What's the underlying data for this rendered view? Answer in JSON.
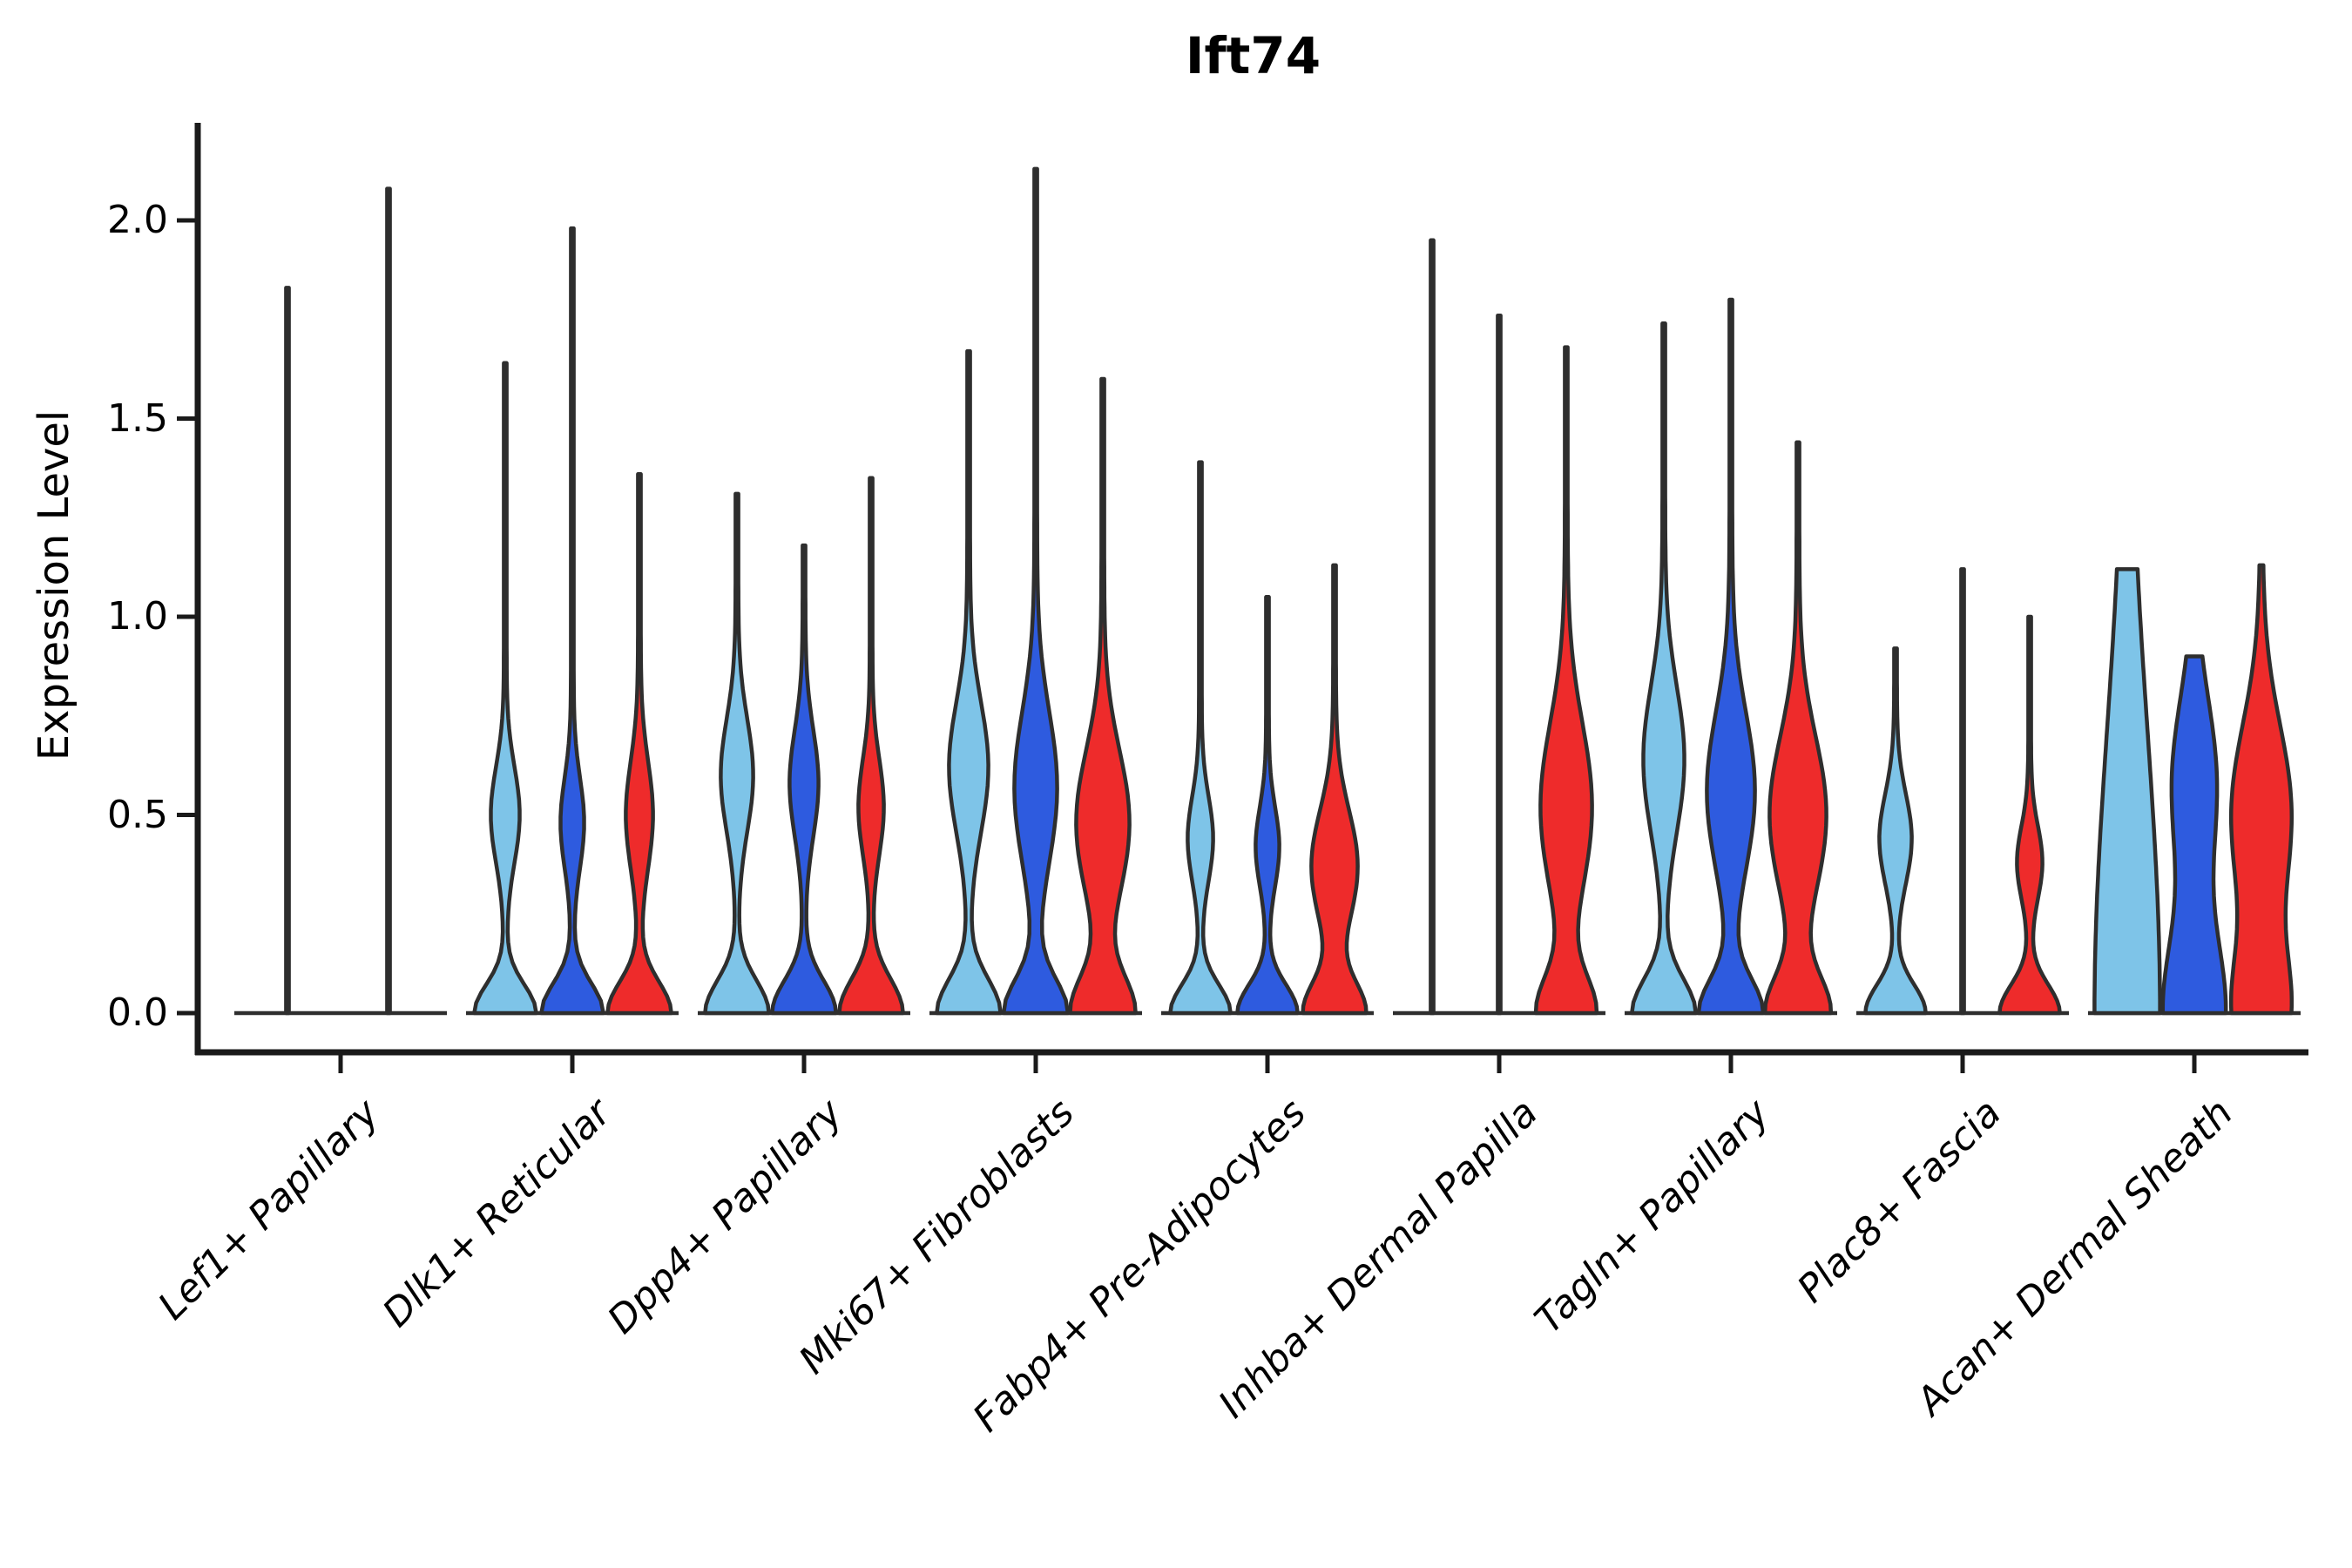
{
  "title": "Ift74",
  "ylabel": "Expression Level",
  "colors": {
    "series_lightblue": "#7EC4E8",
    "series_blue": "#2E5BDF",
    "series_red": "#EE2B2B",
    "outline": "#2E2E2E",
    "axis": "#1a1a1a",
    "background": "#ffffff"
  },
  "chart_data": {
    "type": "violin",
    "title": "Ift74",
    "xlabel": "",
    "ylabel": "Expression Level",
    "ylim": [
      0,
      2.25
    ],
    "yticks": [
      "0.0",
      "0.5",
      "1.0",
      "1.5",
      "2.0"
    ],
    "ytick_values": [
      0.0,
      0.5,
      1.0,
      1.5,
      2.0
    ],
    "grid": false,
    "legend": "none",
    "series": [
      {
        "name": "series-1-lightblue",
        "color": "#7EC4E8"
      },
      {
        "name": "series-2-blue",
        "color": "#2E5BDF"
      },
      {
        "name": "series-3-red",
        "color": "#EE2B2B"
      }
    ],
    "categories": [
      "Lef1+ Papillary",
      "Dlk1+ Reticular",
      "Dpp4+ Papillary",
      "Mki67+ Fibroblasts",
      "Fabp4+ Pre-Adipocytes",
      "Inhba+ Dermal Papilla",
      "Tagln+ Papillary",
      "Plac8+ Fascia",
      "Acan+ Dermal Sheath"
    ],
    "groups": [
      {
        "category": "Lef1+ Papillary",
        "violins": [
          {
            "series": 0,
            "dx": -61,
            "max": 1.83,
            "lens": null,
            "base": null
          },
          {
            "series": 1,
            "dx": 55,
            "max": 2.08,
            "lens": null,
            "base": null
          },
          {
            "series": 2,
            "dx": 77,
            "max": null,
            "lens": null,
            "base": null
          }
        ]
      },
      {
        "category": "Dlk1+ Reticular",
        "violins": [
          {
            "series": 0,
            "dx": -77,
            "max": 1.64,
            "lens": [
              0.5,
              0.17,
              15
            ],
            "base": [
              0.1,
              34
            ]
          },
          {
            "series": 1,
            "dx": 0,
            "max": 1.98,
            "lens": [
              0.48,
              0.16,
              12
            ],
            "base": [
              0.105,
              34
            ]
          },
          {
            "series": 2,
            "dx": 77,
            "max": 1.36,
            "lens": [
              0.5,
              0.19,
              14
            ],
            "base": [
              0.11,
              35
            ]
          }
        ]
      },
      {
        "category": "Dpp4+ Papillary",
        "violins": [
          {
            "series": 0,
            "dx": -77,
            "max": 1.31,
            "lens": [
              0.6,
              0.2,
              17
            ],
            "base": [
              0.115,
              35
            ]
          },
          {
            "series": 1,
            "dx": 0,
            "max": 1.18,
            "lens": [
              0.58,
              0.19,
              15
            ],
            "base": [
              0.115,
              35
            ]
          },
          {
            "series": 2,
            "dx": 77,
            "max": 1.35,
            "lens": [
              0.52,
              0.17,
              13
            ],
            "base": [
              0.12,
              35
            ]
          }
        ]
      },
      {
        "category": "Mki67+ Fibroblasts",
        "violins": [
          {
            "series": 0,
            "dx": -77,
            "max": 1.67,
            "lens": [
              0.62,
              0.23,
              21
            ],
            "base": [
              0.12,
              35
            ]
          },
          {
            "series": 1,
            "dx": 0,
            "max": 2.13,
            "lens": [
              0.57,
              0.27,
              23
            ],
            "base": [
              0.12,
              35
            ]
          },
          {
            "series": 2,
            "dx": 77,
            "max": 1.6,
            "lens": [
              0.48,
              0.26,
              29
            ],
            "base": [
              0.13,
              35
            ]
          }
        ]
      },
      {
        "category": "Fabp4+ Pre-Adipocytes",
        "violins": [
          {
            "series": 0,
            "dx": -77,
            "max": 1.39,
            "lens": [
              0.44,
              0.15,
              13
            ],
            "base": [
              0.1,
              33
            ]
          },
          {
            "series": 1,
            "dx": 0,
            "max": 1.05,
            "lens": [
              0.42,
              0.14,
              12
            ],
            "base": [
              0.1,
              33
            ]
          },
          {
            "series": 2,
            "dx": 77,
            "max": 1.13,
            "lens": [
              0.37,
              0.2,
              25
            ],
            "base": [
              0.11,
              34
            ]
          }
        ]
      },
      {
        "category": "Inhba+ Dermal Papilla",
        "violins": [
          {
            "series": 0,
            "dx": -77,
            "max": 1.95,
            "lens": null,
            "base": null
          },
          {
            "series": 1,
            "dx": 0,
            "max": 1.76,
            "lens": null,
            "base": null
          },
          {
            "series": 2,
            "dx": 77,
            "max": 1.68,
            "lens": [
              0.52,
              0.3,
              28
            ],
            "base": [
              0.13,
              32
            ]
          }
        ]
      },
      {
        "category": "Tagln+ Papillary",
        "violins": [
          {
            "series": 0,
            "dx": -77,
            "max": 1.74,
            "lens": [
              0.64,
              0.26,
              22
            ],
            "base": [
              0.12,
              35
            ]
          },
          {
            "series": 1,
            "dx": 0,
            "max": 1.8,
            "lens": [
              0.56,
              0.28,
              26
            ],
            "base": [
              0.12,
              35
            ]
          },
          {
            "series": 2,
            "dx": 77,
            "max": 1.44,
            "lens": [
              0.5,
              0.28,
              31
            ],
            "base": [
              0.13,
              35
            ]
          }
        ]
      },
      {
        "category": "Plac8+ Fascia",
        "violins": [
          {
            "series": 0,
            "dx": -77,
            "max": 0.92,
            "lens": [
              0.44,
              0.16,
              17
            ],
            "base": [
              0.1,
              33
            ]
          },
          {
            "series": 1,
            "dx": 0,
            "max": 1.12,
            "lens": null,
            "base": null
          },
          {
            "series": 2,
            "dx": 77,
            "max": 1.0,
            "lens": [
              0.38,
              0.13,
              13
            ],
            "base": [
              0.1,
              33
            ]
          }
        ]
      },
      {
        "category": "Acan+ Dermal Sheath",
        "violins": [
          {
            "series": 0,
            "dx": -77,
            "max": 1.12,
            "lens": null,
            "base": [
              1.0,
              36
            ]
          },
          {
            "series": 1,
            "dx": 0,
            "max": 0.9,
            "lens": [
              0.58,
              0.3,
              24
            ],
            "base": [
              0.28,
              34
            ]
          },
          {
            "series": 2,
            "dx": 77,
            "max": 1.13,
            "lens": [
              0.5,
              0.32,
              33
            ],
            "base": [
              0.22,
              30
            ]
          }
        ]
      }
    ]
  }
}
